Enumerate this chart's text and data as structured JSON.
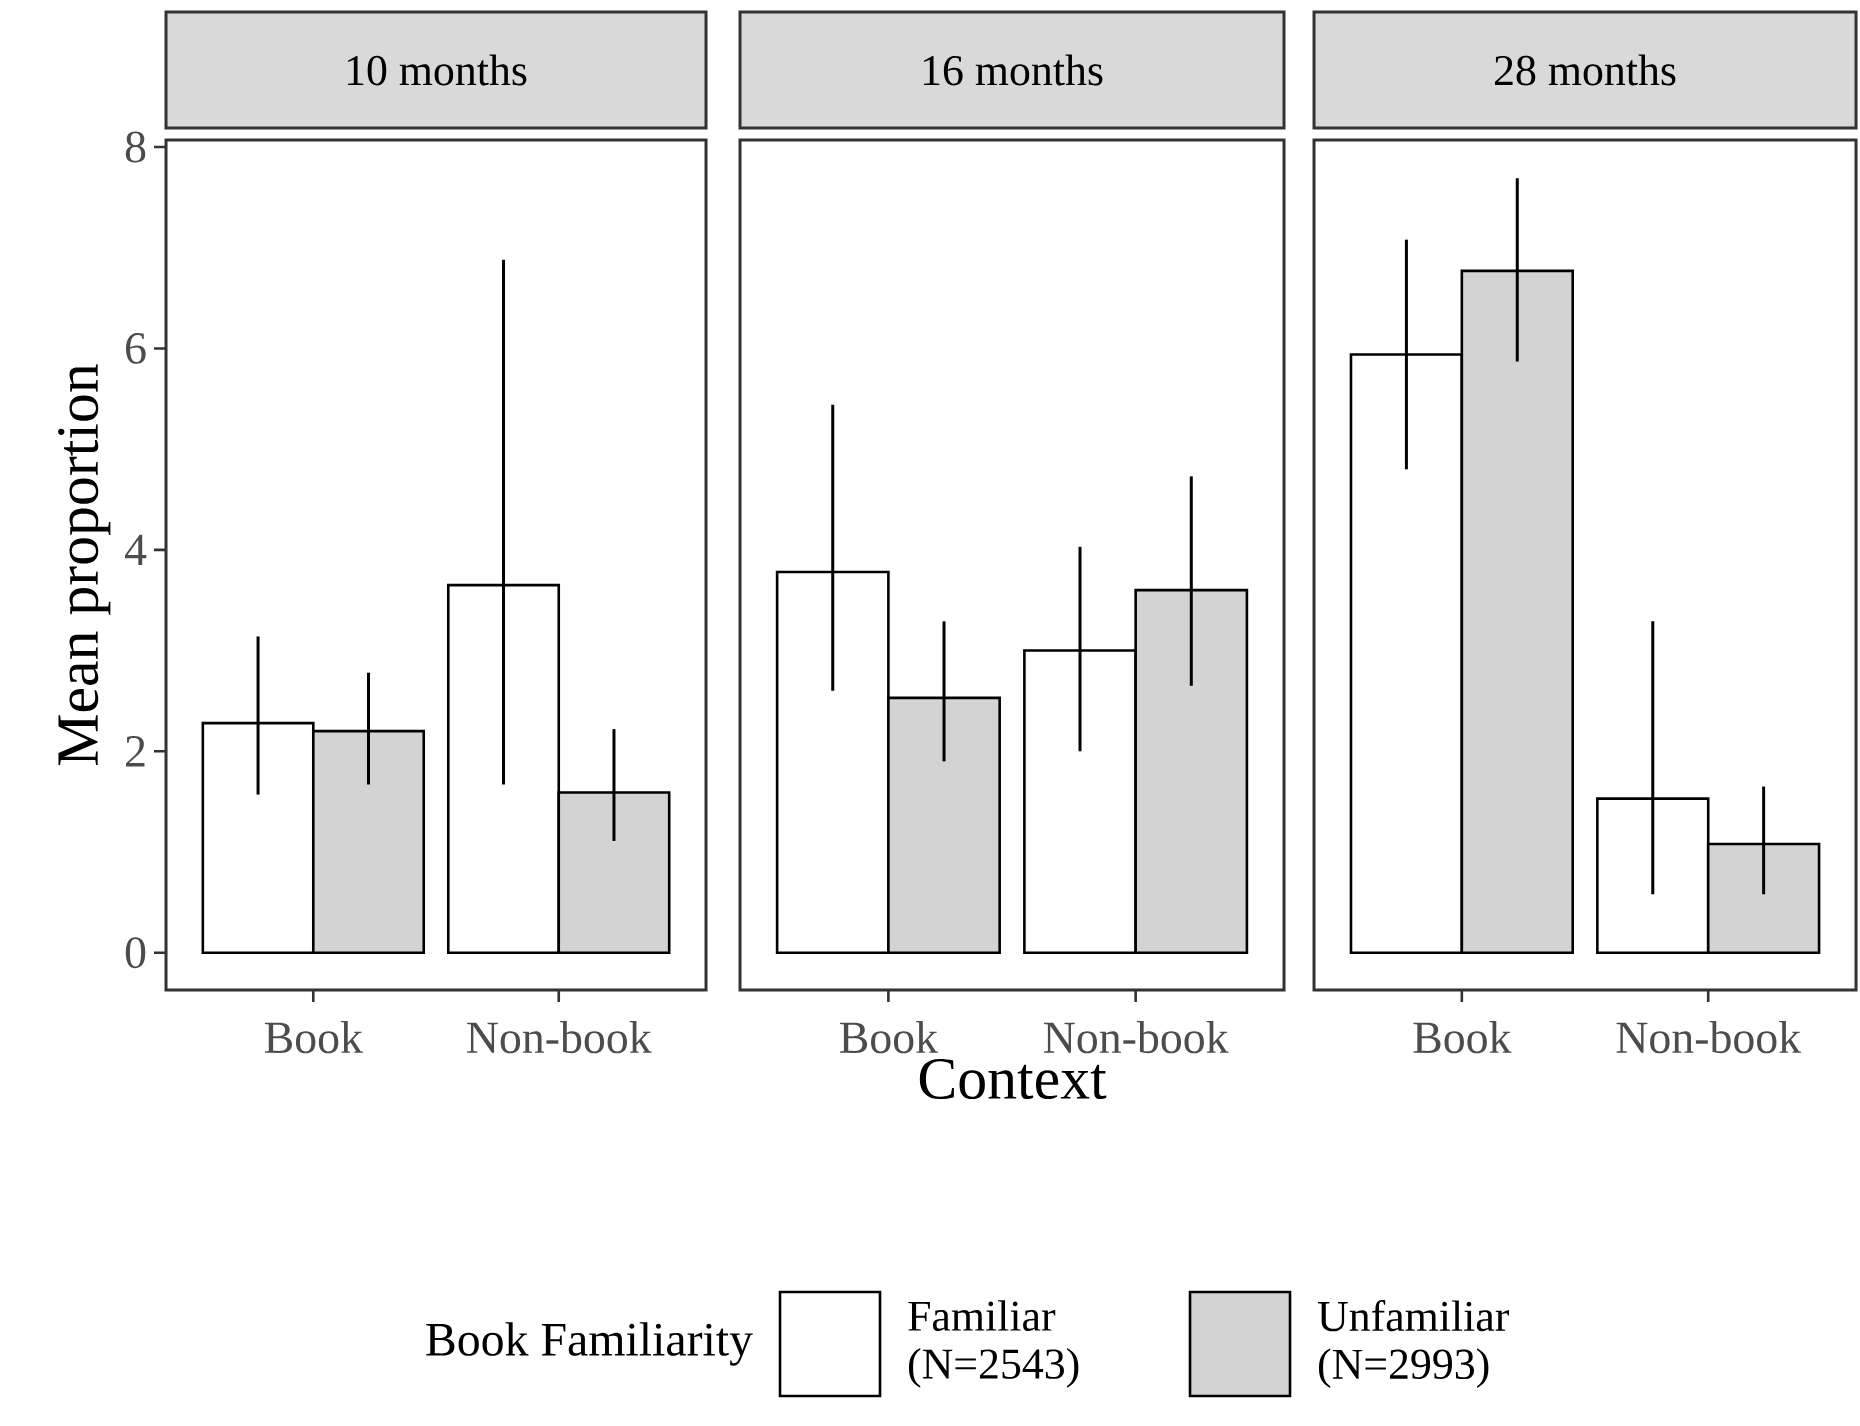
{
  "chart_data": [
    {
      "type": "bar",
      "title": "10 months",
      "ylabel": "Mean proportion",
      "categories": [
        "Book",
        "Non-book"
      ],
      "ylim": [
        -0.37,
        8.07
      ],
      "yticks": [
        0,
        2,
        4,
        6,
        8
      ],
      "series": [
        {
          "color": "#ffffff",
          "values": [
            2.28,
            3.65
          ],
          "errors": [
            [
              1.57,
              3.14
            ],
            [
              1.67,
              6.88
            ]
          ]
        },
        {
          "color": "#d3d3d3",
          "values": [
            2.2,
            1.59
          ],
          "errors": [
            [
              1.67,
              2.78
            ],
            [
              1.11,
              2.22
            ]
          ]
        }
      ]
    },
    {
      "type": "bar",
      "title": "16 months",
      "xlabel": "Context",
      "categories": [
        "Book",
        "Non-book"
      ],
      "ylim": [
        -0.37,
        8.07
      ],
      "tick_labels": "x",
      "legend": "bottom",
      "legend_title": "Book Familiarity",
      "series": [
        {
          "name": "Familiar (N=2543)",
          "color": "#ffffff",
          "values": [
            3.78,
            3.0
          ],
          "errors": [
            [
              2.6,
              5.44
            ],
            [
              2.0,
              4.03
            ]
          ]
        },
        {
          "name": "Unfamiliar (N=2993)",
          "color": "#d3d3d3",
          "values": [
            2.53,
            3.6
          ],
          "errors": [
            [
              1.9,
              3.29
            ],
            [
              2.65,
              4.73
            ]
          ]
        }
      ]
    },
    {
      "type": "bar",
      "title": "28 months",
      "categories": [
        "Book",
        "Non-book"
      ],
      "ylim": [
        -0.37,
        8.07
      ],
      "tick_labels": "x",
      "series": [
        {
          "color": "#ffffff",
          "values": [
            5.94,
            1.53
          ],
          "errors": [
            [
              4.8,
              7.08
            ],
            [
              0.58,
              3.29
            ]
          ]
        },
        {
          "color": "#d3d3d3",
          "values": [
            6.77,
            1.08
          ],
          "errors": [
            [
              5.87,
              7.69
            ],
            [
              0.58,
              1.65
            ]
          ]
        }
      ]
    }
  ]
}
